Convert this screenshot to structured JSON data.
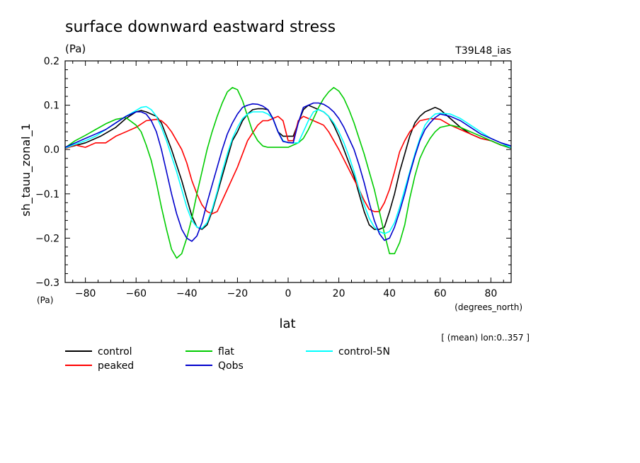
{
  "chart_data": {
    "type": "line",
    "title": "surface downward eastward stress",
    "units_label": "(Pa)",
    "run_label": "T39L48_ias",
    "ylabel": "sh_tauu_zonal_1",
    "yunit_label": "(Pa)",
    "xlabel": "lat",
    "xunit_label": "(degrees_north)",
    "footnote": "[ (mean) lon:0..357 ]",
    "xlim": [
      -88,
      88
    ],
    "ylim": [
      -0.3,
      0.2
    ],
    "xticks": [
      -80,
      -60,
      -40,
      -20,
      0,
      20,
      40,
      60,
      80
    ],
    "xtick_labels": [
      "−80",
      "−60",
      "−40",
      "−20",
      "0",
      "20",
      "40",
      "60",
      "80"
    ],
    "yticks": [
      -0.3,
      -0.2,
      -0.1,
      0.0,
      0.1,
      0.2
    ],
    "ytick_labels": [
      "−0.3",
      "−0.2",
      "−0.1",
      "0.0",
      "0.1",
      "0.2"
    ],
    "series": [
      {
        "name": "control",
        "color": "#000000",
        "x": [
          -88,
          -80,
          -74,
          -68,
          -64,
          -60,
          -58,
          -56,
          -52,
          -50,
          -48,
          -46,
          -44,
          -42,
          -40,
          -38,
          -36,
          -34,
          -32,
          -30,
          -28,
          -26,
          -24,
          -22,
          -20,
          -18,
          -16,
          -14,
          -12,
          -10,
          -8,
          -6,
          -4,
          -2,
          0,
          2,
          4,
          6,
          8,
          10,
          12,
          14,
          16,
          18,
          20,
          22,
          24,
          26,
          28,
          30,
          32,
          34,
          36,
          38,
          40,
          42,
          44,
          46,
          48,
          50,
          52,
          54,
          56,
          58,
          60,
          62,
          64,
          68,
          72,
          76,
          80,
          84,
          88
        ],
        "y": [
          0.003,
          0.015,
          0.03,
          0.05,
          0.07,
          0.085,
          0.088,
          0.085,
          0.075,
          0.06,
          0.03,
          0.0,
          -0.035,
          -0.07,
          -0.11,
          -0.15,
          -0.175,
          -0.18,
          -0.17,
          -0.14,
          -0.1,
          -0.06,
          -0.02,
          0.02,
          0.04,
          0.065,
          0.08,
          0.09,
          0.092,
          0.092,
          0.09,
          0.07,
          0.04,
          0.03,
          0.03,
          0.03,
          0.06,
          0.09,
          0.1,
          0.095,
          0.09,
          0.085,
          0.075,
          0.055,
          0.03,
          0.0,
          -0.03,
          -0.06,
          -0.1,
          -0.14,
          -0.17,
          -0.18,
          -0.18,
          -0.175,
          -0.14,
          -0.1,
          -0.05,
          -0.01,
          0.03,
          0.06,
          0.075,
          0.085,
          0.09,
          0.095,
          0.09,
          0.08,
          0.07,
          0.05,
          0.035,
          0.025,
          0.02,
          0.01,
          0.003
        ]
      },
      {
        "name": "peaked",
        "color": "#ff0000",
        "x": [
          -88,
          -84,
          -80,
          -76,
          -72,
          -68,
          -64,
          -60,
          -56,
          -52,
          -50,
          -48,
          -46,
          -44,
          -42,
          -40,
          -38,
          -36,
          -34,
          -32,
          -30,
          -28,
          -24,
          -20,
          -16,
          -12,
          -10,
          -8,
          -6,
          -4,
          -2,
          0,
          2,
          4,
          6,
          8,
          10,
          12,
          14,
          16,
          20,
          24,
          28,
          30,
          32,
          34,
          36,
          38,
          40,
          42,
          44,
          46,
          48,
          52,
          56,
          60,
          64,
          68,
          72,
          76,
          80,
          84,
          88
        ],
        "y": [
          0.002,
          0.01,
          0.005,
          0.015,
          0.015,
          0.03,
          0.04,
          0.05,
          0.065,
          0.068,
          0.065,
          0.055,
          0.04,
          0.02,
          0.0,
          -0.03,
          -0.07,
          -0.1,
          -0.125,
          -0.14,
          -0.145,
          -0.14,
          -0.09,
          -0.04,
          0.02,
          0.055,
          0.065,
          0.065,
          0.07,
          0.075,
          0.065,
          0.02,
          0.02,
          0.065,
          0.075,
          0.07,
          0.065,
          0.06,
          0.055,
          0.04,
          0.0,
          -0.045,
          -0.09,
          -0.115,
          -0.135,
          -0.14,
          -0.14,
          -0.12,
          -0.09,
          -0.05,
          -0.005,
          0.02,
          0.04,
          0.065,
          0.07,
          0.068,
          0.055,
          0.045,
          0.035,
          0.025,
          0.02,
          0.01,
          0.005
        ]
      },
      {
        "name": "flat",
        "color": "#00cc00",
        "x": [
          -88,
          -84,
          -80,
          -76,
          -72,
          -68,
          -64,
          -60,
          -58,
          -56,
          -54,
          -52,
          -50,
          -48,
          -46,
          -44,
          -42,
          -40,
          -38,
          -36,
          -34,
          -32,
          -30,
          -28,
          -26,
          -24,
          -22,
          -20,
          -18,
          -16,
          -14,
          -12,
          -10,
          -8,
          -6,
          -4,
          -2,
          0,
          2,
          4,
          6,
          8,
          10,
          12,
          14,
          16,
          18,
          20,
          22,
          24,
          26,
          28,
          30,
          32,
          34,
          36,
          38,
          40,
          42,
          44,
          46,
          48,
          50,
          52,
          54,
          56,
          58,
          60,
          64,
          68,
          72,
          76,
          80,
          84,
          88
        ],
        "y": [
          0.004,
          0.02,
          0.032,
          0.045,
          0.058,
          0.068,
          0.072,
          0.055,
          0.04,
          0.01,
          -0.025,
          -0.075,
          -0.13,
          -0.18,
          -0.225,
          -0.245,
          -0.235,
          -0.2,
          -0.155,
          -0.1,
          -0.05,
          0.0,
          0.04,
          0.075,
          0.105,
          0.13,
          0.14,
          0.135,
          0.11,
          0.075,
          0.04,
          0.02,
          0.008,
          0.005,
          0.005,
          0.005,
          0.005,
          0.005,
          0.01,
          0.015,
          0.025,
          0.045,
          0.07,
          0.095,
          0.115,
          0.13,
          0.14,
          0.132,
          0.115,
          0.09,
          0.06,
          0.025,
          -0.01,
          -0.05,
          -0.09,
          -0.14,
          -0.19,
          -0.235,
          -0.235,
          -0.21,
          -0.17,
          -0.11,
          -0.06,
          -0.02,
          0.005,
          0.025,
          0.04,
          0.05,
          0.055,
          0.05,
          0.04,
          0.03,
          0.02,
          0.01,
          0.004
        ]
      },
      {
        "name": "control-5N",
        "color": "#00ffff",
        "x": [
          -88,
          -84,
          -80,
          -76,
          -72,
          -68,
          -64,
          -60,
          -58,
          -56,
          -54,
          -52,
          -50,
          -48,
          -46,
          -44,
          -42,
          -40,
          -38,
          -36,
          -34,
          -32,
          -30,
          -28,
          -26,
          -24,
          -22,
          -20,
          -18,
          -16,
          -14,
          -12,
          -10,
          -8,
          -6,
          -4,
          -2,
          0,
          2,
          4,
          6,
          8,
          10,
          12,
          14,
          16,
          18,
          20,
          22,
          24,
          26,
          28,
          30,
          32,
          34,
          36,
          38,
          40,
          42,
          44,
          46,
          48,
          50,
          52,
          54,
          56,
          58,
          60,
          64,
          68,
          72,
          76,
          80,
          84,
          88
        ],
        "y": [
          0.003,
          0.012,
          0.02,
          0.03,
          0.045,
          0.06,
          0.075,
          0.088,
          0.095,
          0.097,
          0.09,
          0.075,
          0.05,
          0.02,
          -0.015,
          -0.05,
          -0.09,
          -0.13,
          -0.16,
          -0.175,
          -0.178,
          -0.165,
          -0.135,
          -0.095,
          -0.05,
          -0.01,
          0.025,
          0.05,
          0.07,
          0.08,
          0.085,
          0.085,
          0.085,
          0.08,
          0.07,
          0.04,
          0.02,
          0.015,
          0.015,
          0.015,
          0.04,
          0.065,
          0.085,
          0.09,
          0.085,
          0.075,
          0.06,
          0.04,
          0.015,
          -0.015,
          -0.05,
          -0.09,
          -0.125,
          -0.155,
          -0.175,
          -0.185,
          -0.19,
          -0.185,
          -0.165,
          -0.13,
          -0.09,
          -0.05,
          -0.01,
          0.025,
          0.055,
          0.07,
          0.08,
          0.082,
          0.08,
          0.07,
          0.055,
          0.04,
          0.025,
          0.015,
          0.004
        ]
      },
      {
        "name": "Qobs",
        "color": "#0000cc",
        "x": [
          -88,
          -84,
          -80,
          -76,
          -72,
          -68,
          -64,
          -60,
          -58,
          -56,
          -54,
          -52,
          -50,
          -48,
          -46,
          -44,
          -42,
          -40,
          -38,
          -36,
          -34,
          -32,
          -30,
          -28,
          -26,
          -24,
          -22,
          -20,
          -18,
          -16,
          -14,
          -12,
          -10,
          -8,
          -6,
          -4,
          -2,
          0,
          2,
          4,
          6,
          8,
          10,
          12,
          14,
          16,
          18,
          20,
          22,
          24,
          26,
          28,
          30,
          32,
          34,
          36,
          38,
          40,
          42,
          44,
          46,
          48,
          50,
          52,
          54,
          56,
          58,
          60,
          64,
          68,
          72,
          76,
          80,
          84,
          88
        ],
        "y": [
          0.005,
          0.015,
          0.025,
          0.035,
          0.045,
          0.06,
          0.075,
          0.085,
          0.085,
          0.08,
          0.065,
          0.04,
          0.0,
          -0.05,
          -0.1,
          -0.145,
          -0.18,
          -0.2,
          -0.207,
          -0.195,
          -0.165,
          -0.12,
          -0.08,
          -0.04,
          0.0,
          0.035,
          0.06,
          0.08,
          0.095,
          0.1,
          0.103,
          0.102,
          0.098,
          0.09,
          0.07,
          0.04,
          0.018,
          0.016,
          0.015,
          0.06,
          0.095,
          0.1,
          0.105,
          0.105,
          0.102,
          0.095,
          0.085,
          0.07,
          0.05,
          0.025,
          0.0,
          -0.035,
          -0.075,
          -0.12,
          -0.16,
          -0.19,
          -0.205,
          -0.2,
          -0.175,
          -0.14,
          -0.1,
          -0.055,
          -0.015,
          0.02,
          0.045,
          0.06,
          0.072,
          0.08,
          0.075,
          0.065,
          0.05,
          0.035,
          0.025,
          0.015,
          0.008
        ]
      }
    ],
    "legend": [
      {
        "label": "control",
        "color": "#000000"
      },
      {
        "label": "peaked",
        "color": "#ff0000"
      },
      {
        "label": "flat",
        "color": "#00cc00"
      },
      {
        "label": "Qobs",
        "color": "#0000cc"
      },
      {
        "label": "control-5N",
        "color": "#00ffff"
      }
    ]
  }
}
